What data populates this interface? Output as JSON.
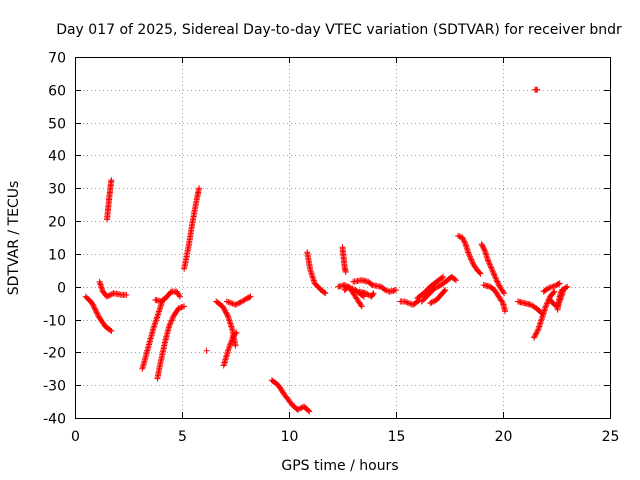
{
  "chart_data": {
    "type": "scatter",
    "title": "Day 017 of 2025, Sidereal Day-to-day VTEC variation (SDTVAR) for receiver bndr",
    "xlabel": "GPS time / hours",
    "ylabel": "SDTVAR / TECUs",
    "xlim": [
      0,
      25
    ],
    "ylim": [
      -40,
      70
    ],
    "xticks": [
      0,
      5,
      10,
      15,
      20,
      25
    ],
    "yticks": [
      -40,
      -30,
      -20,
      -10,
      0,
      10,
      20,
      30,
      40,
      50,
      60,
      70
    ],
    "grid": true,
    "marker": "plus",
    "color": "#ff0000",
    "segments": [
      [
        [
          0.5,
          -3
        ],
        [
          0.8,
          -5
        ],
        [
          1.1,
          -9
        ],
        [
          1.4,
          -12
        ],
        [
          1.7,
          -13.5
        ]
      ],
      [
        [
          1.15,
          1.5
        ],
        [
          1.3,
          -1.5
        ],
        [
          1.5,
          -3
        ],
        [
          1.8,
          -2
        ],
        [
          2.2,
          -2.5
        ],
        [
          2.4,
          -2.5
        ]
      ],
      [
        [
          1.5,
          20.5
        ],
        [
          1.55,
          24
        ],
        [
          1.6,
          27
        ],
        [
          1.65,
          30
        ],
        [
          1.7,
          32.5
        ]
      ],
      [
        [
          3.15,
          -25
        ],
        [
          3.4,
          -19
        ],
        [
          3.65,
          -13
        ],
        [
          3.9,
          -8
        ],
        [
          4.1,
          -4
        ]
      ],
      [
        [
          3.75,
          -4
        ],
        [
          4.05,
          -4.5
        ],
        [
          4.3,
          -3
        ],
        [
          4.5,
          -1.5
        ],
        [
          4.75,
          -1.5
        ],
        [
          4.9,
          -3
        ]
      ],
      [
        [
          3.85,
          -28
        ],
        [
          4.0,
          -23
        ],
        [
          4.2,
          -17
        ],
        [
          4.4,
          -12
        ],
        [
          4.6,
          -9
        ],
        [
          4.85,
          -6.5
        ],
        [
          5.1,
          -6
        ]
      ],
      [
        [
          5.1,
          5.5
        ],
        [
          5.3,
          12
        ],
        [
          5.5,
          20
        ],
        [
          5.7,
          27
        ],
        [
          5.8,
          30
        ]
      ],
      [
        [
          6.15,
          -19.5
        ]
      ],
      [
        [
          6.6,
          -4.5
        ],
        [
          6.9,
          -6
        ],
        [
          7.15,
          -9
        ],
        [
          7.35,
          -13
        ],
        [
          7.5,
          -18
        ]
      ],
      [
        [
          6.95,
          -24
        ],
        [
          7.15,
          -19.5
        ],
        [
          7.4,
          -15
        ],
        [
          7.55,
          -14
        ]
      ],
      [
        [
          7.1,
          -4.5
        ],
        [
          7.5,
          -5.5
        ],
        [
          7.8,
          -4.5
        ],
        [
          8.05,
          -3.5
        ],
        [
          8.2,
          -3
        ]
      ],
      [
        [
          9.2,
          -28.5
        ],
        [
          9.5,
          -30
        ],
        [
          9.8,
          -33
        ],
        [
          10.15,
          -36
        ],
        [
          10.4,
          -37.5
        ],
        [
          10.7,
          -36.5
        ],
        [
          10.95,
          -38
        ]
      ],
      [
        [
          10.85,
          10.5
        ],
        [
          11.0,
          5
        ],
        [
          11.2,
          1
        ],
        [
          11.5,
          -1
        ],
        [
          11.7,
          -2
        ]
      ],
      [
        [
          12.3,
          0
        ],
        [
          12.6,
          0.5
        ],
        [
          12.9,
          -0.5
        ],
        [
          13.1,
          -1
        ],
        [
          13.3,
          -2
        ],
        [
          13.5,
          -3
        ]
      ],
      [
        [
          12.5,
          12
        ],
        [
          12.55,
          9
        ],
        [
          12.6,
          6
        ],
        [
          12.65,
          4.5
        ]
      ],
      [
        [
          12.6,
          -1
        ],
        [
          12.8,
          0
        ],
        [
          13.0,
          -2
        ],
        [
          13.2,
          -4
        ],
        [
          13.4,
          -6
        ]
      ],
      [
        [
          13.3,
          -1.5
        ],
        [
          13.6,
          -2
        ],
        [
          13.85,
          -3
        ],
        [
          13.95,
          -2
        ]
      ],
      [
        [
          13.0,
          1.5
        ],
        [
          13.4,
          2
        ],
        [
          13.7,
          1.5
        ],
        [
          13.9,
          0.5
        ],
        [
          14.3,
          0
        ],
        [
          14.5,
          -1
        ],
        [
          14.7,
          -1.5
        ],
        [
          15.0,
          -1
        ]
      ],
      [
        [
          15.2,
          -4.5
        ],
        [
          15.4,
          -4.5
        ],
        [
          15.6,
          -5
        ],
        [
          15.8,
          -5.5
        ],
        [
          16.1,
          -4
        ]
      ],
      [
        [
          16.0,
          -3.5
        ],
        [
          16.3,
          -2
        ],
        [
          16.6,
          0
        ],
        [
          16.9,
          1.5
        ],
        [
          17.2,
          3
        ]
      ],
      [
        [
          16.2,
          -4.5
        ],
        [
          16.5,
          -2.5
        ],
        [
          16.8,
          -0.5
        ],
        [
          17.1,
          0.5
        ],
        [
          17.4,
          2
        ],
        [
          17.6,
          3
        ],
        [
          17.8,
          2
        ]
      ],
      [
        [
          16.6,
          -5
        ],
        [
          16.9,
          -4
        ],
        [
          17.1,
          -2.5
        ],
        [
          17.3,
          -1
        ]
      ],
      [
        [
          17.9,
          15.5
        ],
        [
          18.1,
          15
        ],
        [
          18.25,
          13
        ],
        [
          18.4,
          10
        ],
        [
          18.6,
          7
        ],
        [
          18.8,
          5
        ],
        [
          18.95,
          4
        ]
      ],
      [
        [
          19.0,
          13
        ],
        [
          19.15,
          11
        ],
        [
          19.3,
          8
        ],
        [
          19.5,
          5
        ],
        [
          19.7,
          2
        ],
        [
          19.85,
          0
        ],
        [
          20.05,
          -2
        ]
      ],
      [
        [
          19.1,
          0.5
        ],
        [
          19.4,
          0
        ],
        [
          19.6,
          -1
        ],
        [
          19.8,
          -3
        ],
        [
          20.0,
          -5
        ],
        [
          20.1,
          -7.5
        ]
      ],
      [
        [
          20.7,
          -4.5
        ],
        [
          21.0,
          -5
        ],
        [
          21.3,
          -5.5
        ],
        [
          21.55,
          -6.5
        ],
        [
          21.8,
          -8
        ]
      ],
      [
        [
          21.45,
          -15.5
        ],
        [
          21.65,
          -13
        ],
        [
          21.85,
          -9
        ],
        [
          22.0,
          -6
        ],
        [
          22.2,
          -3
        ],
        [
          22.4,
          -1.5
        ]
      ],
      [
        [
          21.9,
          -1.5
        ],
        [
          22.1,
          -0.5
        ],
        [
          22.3,
          0
        ],
        [
          22.5,
          0.5
        ],
        [
          22.65,
          1
        ]
      ],
      [
        [
          22.2,
          -4
        ],
        [
          22.4,
          -5.5
        ],
        [
          22.55,
          -6
        ],
        [
          22.7,
          -3.5
        ],
        [
          22.8,
          -1.5
        ]
      ],
      [
        [
          22.55,
          -7
        ],
        [
          22.65,
          -3
        ],
        [
          22.75,
          -1
        ],
        [
          22.9,
          -0.5
        ],
        [
          23.0,
          0
        ]
      ],
      [
        [
          21.5,
          60
        ],
        [
          21.6,
          60
        ]
      ]
    ]
  }
}
